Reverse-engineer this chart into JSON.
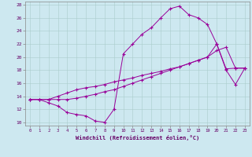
{
  "bg_color": "#cde8f0",
  "line_color": "#990099",
  "xlim": [
    -0.5,
    23.5
  ],
  "ylim": [
    9.5,
    28.5
  ],
  "yticks": [
    10,
    12,
    14,
    16,
    18,
    20,
    22,
    24,
    26,
    28
  ],
  "xticks": [
    0,
    1,
    2,
    3,
    4,
    5,
    6,
    7,
    8,
    9,
    10,
    11,
    12,
    13,
    14,
    15,
    16,
    17,
    18,
    19,
    20,
    21,
    22,
    23
  ],
  "xlabel": "Windchill (Refroidissement éolien,°C)",
  "line1_x": [
    0,
    1,
    2,
    3,
    4,
    5,
    6,
    7,
    8,
    9,
    10,
    11,
    12,
    13,
    14,
    15,
    16,
    17,
    18,
    19,
    20,
    21,
    22,
    23
  ],
  "line1_y": [
    13.5,
    13.5,
    13.0,
    12.5,
    11.5,
    11.2,
    11.0,
    10.2,
    10.0,
    12.0,
    20.5,
    22.0,
    23.5,
    24.5,
    26.0,
    27.4,
    27.8,
    26.5,
    26.0,
    25.0,
    22.0,
    18.0,
    15.8,
    18.3
  ],
  "line2_x": [
    0,
    1,
    2,
    3,
    4,
    5,
    6,
    7,
    8,
    9,
    10,
    11,
    12,
    13,
    14,
    15,
    16,
    17,
    18,
    19,
    20,
    21,
    22,
    23
  ],
  "line2_y": [
    13.5,
    13.5,
    13.5,
    13.5,
    13.5,
    13.7,
    14.0,
    14.3,
    14.7,
    15.0,
    15.5,
    16.0,
    16.5,
    17.0,
    17.5,
    18.0,
    18.5,
    19.0,
    19.5,
    20.0,
    22.0,
    18.2,
    18.3,
    18.3
  ],
  "line3_x": [
    0,
    1,
    2,
    3,
    4,
    5,
    6,
    7,
    8,
    9,
    10,
    11,
    12,
    13,
    14,
    15,
    16,
    17,
    18,
    19,
    20,
    21,
    22,
    23
  ],
  "line3_y": [
    13.5,
    13.5,
    13.5,
    14.0,
    14.5,
    15.0,
    15.3,
    15.5,
    15.8,
    16.2,
    16.5,
    16.8,
    17.2,
    17.5,
    17.8,
    18.2,
    18.5,
    19.0,
    19.5,
    20.0,
    21.0,
    21.5,
    18.3,
    18.3
  ]
}
